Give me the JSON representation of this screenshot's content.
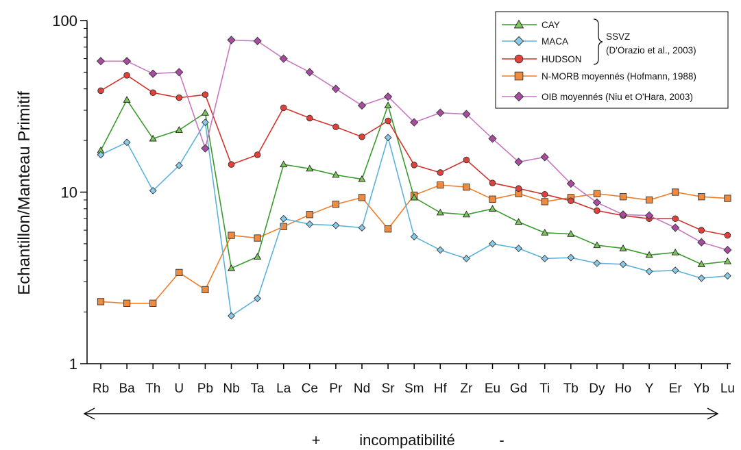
{
  "chart_data": {
    "type": "line",
    "ylabel": "Echantillon/Manteau Primitif",
    "yscale": "log",
    "ylim": [
      1,
      100
    ],
    "yticks": [
      "1",
      "10",
      "100"
    ],
    "categories": [
      "Rb",
      "Ba",
      "Th",
      "U",
      "Pb",
      "Nb",
      "Ta",
      "La",
      "Ce",
      "Pr",
      "Nd",
      "Sr",
      "Sm",
      "Hf",
      "Zr",
      "Eu",
      "Gd",
      "Ti",
      "Tb",
      "Dy",
      "Ho",
      "Y",
      "Er",
      "Yb",
      "Lu"
    ],
    "series": [
      {
        "name": "CAY",
        "color": "#3a9a2e",
        "fill": "#7dc65c",
        "marker": "triangle",
        "values": [
          17.5,
          34.5,
          20.5,
          23,
          29,
          3.6,
          4.2,
          14.5,
          13.7,
          12.6,
          11.9,
          32,
          9.3,
          7.6,
          7.4,
          8.0,
          6.7,
          5.8,
          5.7,
          4.9,
          4.7,
          4.3,
          4.45,
          3.8,
          3.95
        ]
      },
      {
        "name": "MACA",
        "color": "#5bb3dc",
        "fill": "#8ccbe8",
        "marker": "diamond",
        "values": [
          16.5,
          19.5,
          10.2,
          14.3,
          25.5,
          1.9,
          2.4,
          7.0,
          6.5,
          6.4,
          6.2,
          20.8,
          5.5,
          4.6,
          4.1,
          5.0,
          4.7,
          4.1,
          4.15,
          3.85,
          3.8,
          3.45,
          3.5,
          3.15,
          3.25
        ]
      },
      {
        "name": "HUDSON",
        "color": "#d2322d",
        "fill": "#e0413a",
        "marker": "circle",
        "values": [
          39,
          48,
          38,
          35.5,
          37,
          14.5,
          16.5,
          31,
          27,
          24,
          21,
          26,
          14.4,
          13,
          15.4,
          11.3,
          10.5,
          9.7,
          8.9,
          7.8,
          7.3,
          7.0,
          7.0,
          6.0,
          5.6
        ]
      },
      {
        "name": "N-MORB moyennés (Hofmann, 1988)",
        "color": "#ee7e2a",
        "fill": "#f08a3e",
        "marker": "square",
        "values": [
          2.3,
          2.25,
          2.25,
          3.4,
          2.7,
          5.6,
          5.4,
          6.3,
          7.4,
          8.5,
          9.3,
          6.1,
          9.6,
          11.0,
          10.7,
          9.1,
          9.8,
          8.8,
          9.3,
          9.8,
          9.4,
          9.0,
          10.0,
          9.4,
          9.2
        ]
      },
      {
        "name": "OIB moyennés (Niu et O'Hara, 2003)",
        "color": "#c678c0",
        "fill": "#a84ca0",
        "marker": "diamond",
        "values": [
          58,
          58,
          49,
          50,
          18,
          77,
          76,
          60,
          50,
          40,
          32,
          36,
          25.5,
          29,
          28.5,
          20.5,
          15,
          16,
          11.2,
          8.7,
          7.4,
          7.3,
          6.2,
          5.1,
          4.6
        ]
      }
    ],
    "legend": {
      "position": "top-right",
      "group_label": "SSVZ",
      "group_ref": "(D'Orazio et al., 2003)",
      "entries": [
        {
          "marker": "triangle",
          "label": "CAY"
        },
        {
          "marker": "diamond",
          "label": "MACA"
        },
        {
          "marker": "circle",
          "label": "HUDSON"
        },
        {
          "marker": "square",
          "label": "N-MORB moyennés (Hofmann, 1988)"
        },
        {
          "marker": "diamond",
          "label": "OIB moyennés (Niu et O'Hara, 2003)"
        }
      ]
    },
    "bottom_annotation": {
      "plus": "+",
      "text": "incompatibilité",
      "minus": "-"
    }
  }
}
